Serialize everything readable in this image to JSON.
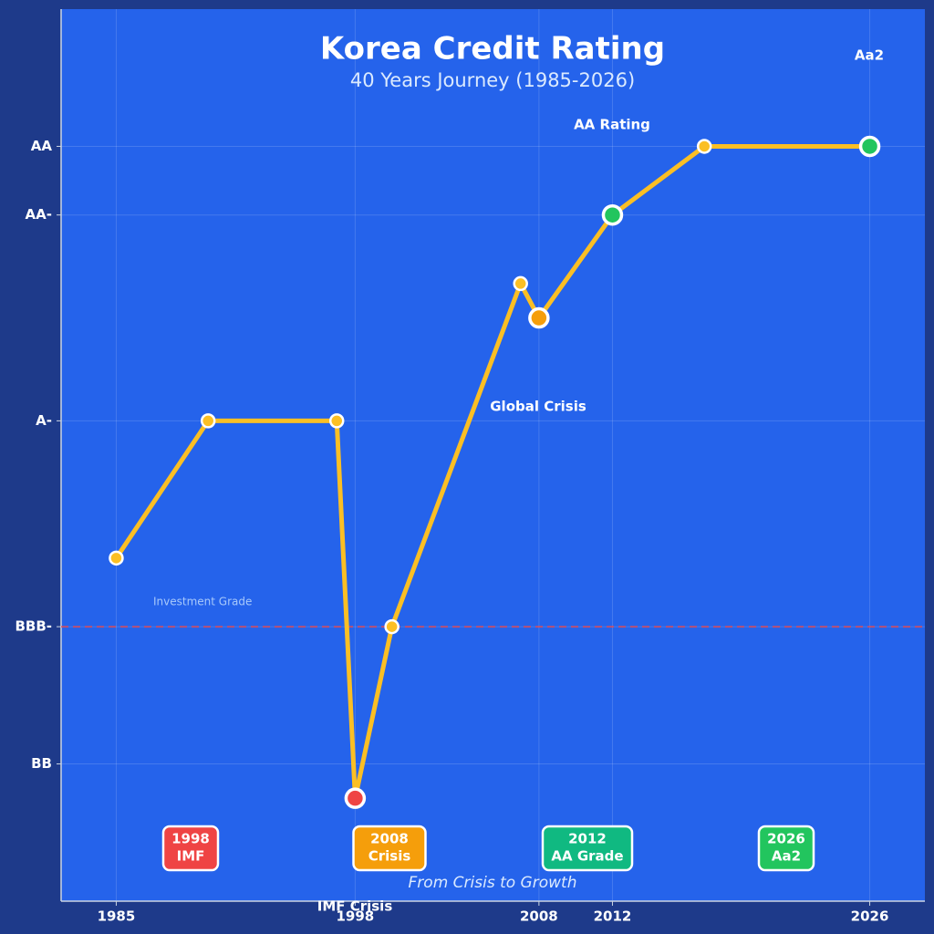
{
  "chart_data": {
    "type": "line",
    "title": "Korea Credit Rating",
    "subtitle": "40 Years Journey (1985-2026)",
    "series": [
      {
        "name": "Korea Credit Rating",
        "color": "#fbbf24",
        "x": [
          1985,
          1990,
          1997,
          1998,
          2000,
          2007,
          2008,
          2012,
          2017,
          2026
        ],
        "values": [
          4,
          6,
          6,
          0.5,
          3,
          8,
          7.5,
          9,
          10,
          10
        ],
        "marker_colors": [
          "#fbbf24",
          "#fbbf24",
          "#fbbf24",
          "#ef4444",
          "#fbbf24",
          "#fbbf24",
          "#f59e0b",
          "#22c55e",
          "#fbbf24",
          "#22c55e"
        ]
      }
    ],
    "xlim": [
      1982,
      2029
    ],
    "xticks": [
      1985,
      1998,
      2008,
      2012,
      2026
    ],
    "ylim": [
      -1,
      12
    ],
    "yticks": [
      {
        "value": 1,
        "label": "BB"
      },
      {
        "value": 3,
        "label": "BBB-"
      },
      {
        "value": 6,
        "label": "A-"
      },
      {
        "value": 9,
        "label": "AA-"
      },
      {
        "value": 10,
        "label": "AA"
      }
    ],
    "grid": true,
    "reference_line": {
      "value": 3,
      "label": "Investment Grade",
      "color": "#ef4444"
    },
    "annotations": [
      "Aa2",
      "AA Rating",
      "Global Crisis",
      "IMF Crisis"
    ],
    "badges": [
      {
        "lines": [
          "1998",
          "IMF"
        ],
        "color": "#ef4444"
      },
      {
        "lines": [
          "2008",
          "Crisis"
        ],
        "color": "#f59e0b"
      },
      {
        "lines": [
          "2012",
          "AA Grade"
        ],
        "color": "#10b981"
      },
      {
        "lines": [
          "2026",
          "Aa2"
        ],
        "color": "#22c55e"
      }
    ],
    "caption": "From Crisis to Growth"
  }
}
